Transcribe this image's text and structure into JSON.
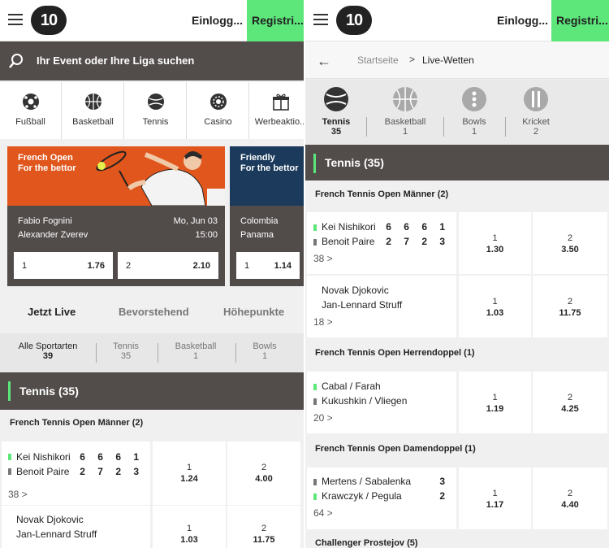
{
  "left": {
    "header": {
      "login": "Einlogg...",
      "register": "Registri..."
    },
    "search": {
      "placeholder": "Ihr Event oder Ihre Liga suchen"
    },
    "sports": [
      {
        "label": "Fußball",
        "icon": "football-icon"
      },
      {
        "label": "Basketball",
        "icon": "basketball-icon"
      },
      {
        "label": "Tennis",
        "icon": "tennis-icon"
      },
      {
        "label": "Casino",
        "icon": "casino-chip-icon"
      },
      {
        "label": "Werbeaktio...",
        "icon": "gift-icon"
      }
    ],
    "promos": [
      {
        "headline": "French Open\nFor the bettor",
        "team1": "Fabio Fognini",
        "team2": "Alexander Zverev",
        "date": "Mo, Jun 03",
        "time": "15:00",
        "odds": [
          {
            "label": "1",
            "value": "1.76"
          },
          {
            "label": "2",
            "value": "2.10"
          }
        ],
        "color": "#e0561c"
      },
      {
        "headline": "Friendly\nFor the bettor",
        "team1": "Colombia",
        "team2": "Panama",
        "odds": [
          {
            "label": "1",
            "value": "1.14"
          }
        ],
        "color": "#1b3a5c"
      }
    ],
    "tabs": [
      "Jetzt Live",
      "Bevorstehend",
      "Höhepunkte"
    ],
    "filters": [
      {
        "label": "Alle Sportarten",
        "count": "39"
      },
      {
        "label": "Tennis",
        "count": "35"
      },
      {
        "label": "Basketball",
        "count": "1"
      },
      {
        "label": "Bowls",
        "count": "1"
      }
    ],
    "section_title": "Tennis (35)",
    "competition": "French Tennis Open Männer  (2)",
    "events": [
      {
        "p1": "Kei Nishikori",
        "p2": "Benoit Paire",
        "s1": "6 6 6 1",
        "s2": "2 7 2 3",
        "more": "38 >",
        "o1": "1.24",
        "o2": "4.00"
      },
      {
        "p1": "Novak Djokovic",
        "p2": "Jan-Lennard Struff",
        "more": "",
        "o1": "1.03",
        "o2": "11.75"
      }
    ]
  },
  "right": {
    "header": {
      "login": "Einlogg...",
      "register": "Registri..."
    },
    "breadcrumb": {
      "home": "Startseite",
      "sep": ">",
      "current": "Live-Wetten"
    },
    "sports": [
      {
        "label": "Tennis",
        "count": "35",
        "icon": "tennis-ball-icon"
      },
      {
        "label": "Basketball",
        "count": "1",
        "icon": "basketball-icon"
      },
      {
        "label": "Bowls",
        "count": "1",
        "icon": "bowls-icon"
      },
      {
        "label": "Kricket",
        "count": "2",
        "icon": "cricket-icon"
      }
    ],
    "section_title": "Tennis (35)",
    "competitions": [
      "French Tennis Open Männer  (2)",
      "French Tennis Open Herrendoppel  (1)",
      "French Tennis Open Damendoppel  (1)",
      "Challenger Prostejov  (5)"
    ],
    "events": [
      {
        "p1": "Kei Nishikori",
        "p2": "Benoit Paire",
        "s1": "6 6 6 1",
        "s2": "2 7 2 3",
        "more": "38 >",
        "o1": "1.30",
        "o2": "3.50"
      },
      {
        "p1": "Novak Djokovic",
        "p2": "Jan-Lennard Struff",
        "more": "18 >",
        "o1": "1.03",
        "o2": "11.75"
      },
      {
        "p1": "Cabal / Farah",
        "p2": "Kukushkin / Vliegen",
        "more": "20 >",
        "o1": "1.19",
        "o2": "4.25"
      },
      {
        "p1": "Mertens / Sabalenka",
        "p2": "Krawczyk / Pegula",
        "s1": "3",
        "s2": "2",
        "more": "64 >",
        "o1": "1.17",
        "o2": "4.40"
      }
    ]
  },
  "odd_labels": {
    "one": "1",
    "two": "2"
  },
  "colors": {
    "accent": "#5de67a",
    "dark": "#524c4b",
    "serve": "#5de67a"
  }
}
